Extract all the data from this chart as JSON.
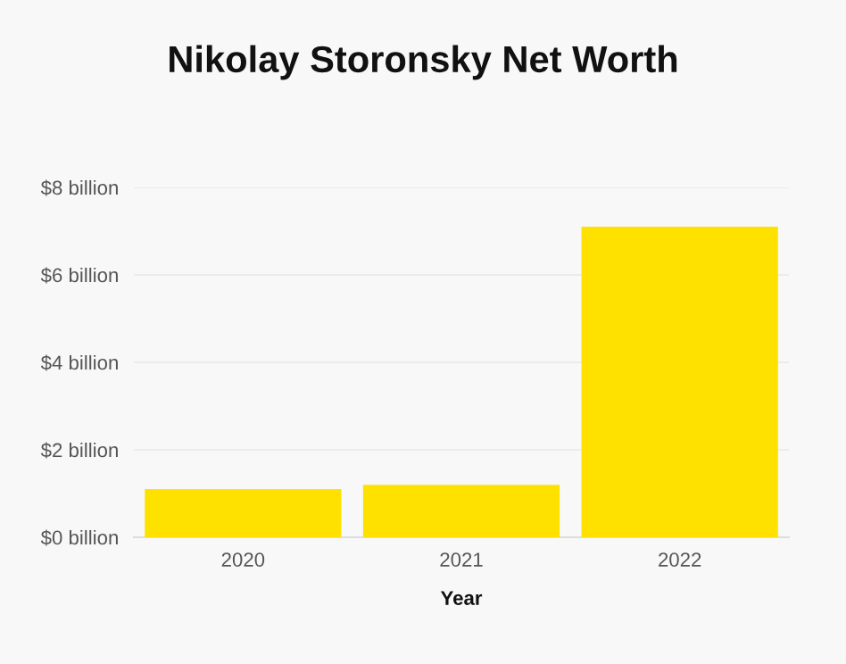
{
  "chart_data": {
    "type": "bar",
    "title": "Nikolay Storonsky Net Worth",
    "xlabel": "Year",
    "categories": [
      "2020",
      "2021",
      "2022"
    ],
    "values": [
      1.1,
      1.2,
      7.1
    ],
    "color": "#ffe100",
    "ylim": [
      0,
      8
    ],
    "yticks": [
      {
        "value": 0,
        "label": "$0 billion"
      },
      {
        "value": 2,
        "label": "$2 billion"
      },
      {
        "value": 4,
        "label": "$4 billion"
      },
      {
        "value": 6,
        "label": "$6 billion"
      },
      {
        "value": 8,
        "label": "$8 billion"
      }
    ],
    "grid": "y"
  }
}
